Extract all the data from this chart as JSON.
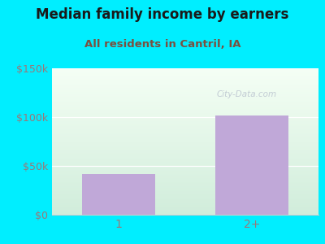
{
  "title": "Median family income by earners",
  "subtitle": "All residents in Cantril, IA",
  "categories": [
    "1",
    "2+"
  ],
  "values": [
    42000,
    102000
  ],
  "bar_color": "#c0a8d8",
  "ylim": [
    0,
    150000
  ],
  "yticks": [
    0,
    50000,
    100000,
    150000
  ],
  "ytick_labels": [
    "$0",
    "$50k",
    "$100k",
    "$150k"
  ],
  "background_outer": "#00eeff",
  "plot_bg_top": "#f0f8f0",
  "plot_bg_bottom": "#d0ecd8",
  "title_color": "#1a1a1a",
  "subtitle_color": "#7a5040",
  "tick_color": "#9a7878",
  "watermark": "City-Data.com",
  "title_fontsize": 12,
  "subtitle_fontsize": 9.5
}
